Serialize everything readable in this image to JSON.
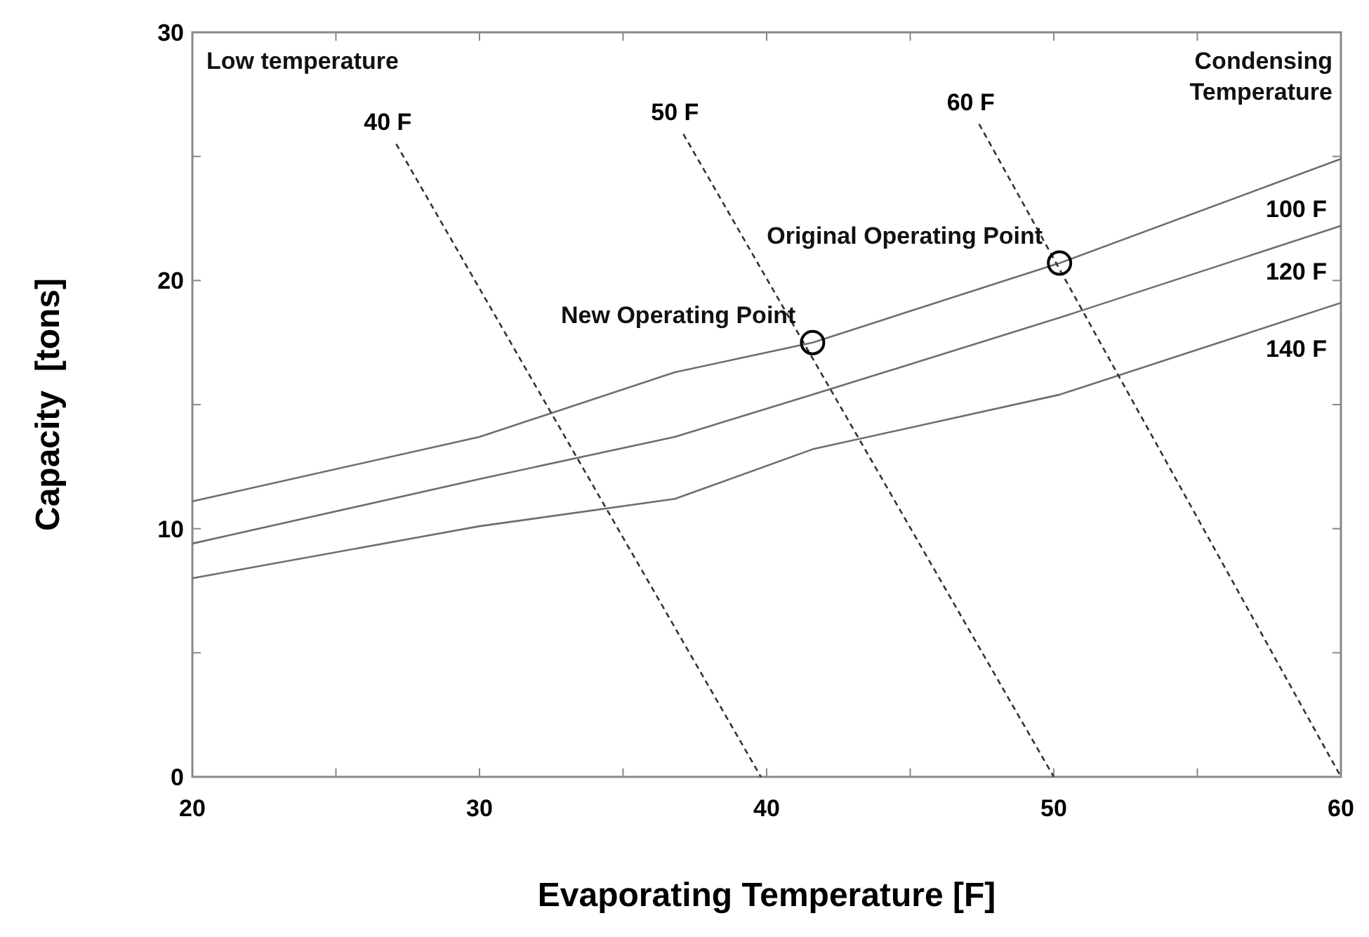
{
  "chart_data": {
    "type": "line",
    "xlabel": "Evaporating Temperature [F]",
    "ylabel": "Capacity  [tons]",
    "xlim": [
      20,
      60
    ],
    "ylim": [
      0,
      30
    ],
    "xticks": [
      20,
      {
        "value": 25,
        "label": null
      },
      30,
      {
        "value": 35,
        "label": null
      },
      40,
      {
        "value": 45,
        "label": null
      },
      50,
      {
        "value": 55,
        "label": null
      },
      60
    ],
    "yticks": [
      0,
      {
        "value": 5,
        "label": null
      },
      10,
      {
        "value": 15,
        "label": null
      },
      20,
      {
        "value": 25,
        "label": null
      },
      30
    ],
    "grid": false,
    "series": [
      {
        "name": "100 F",
        "color": "#6e6e6e",
        "line_style": "solid",
        "x": [
          20,
          30,
          36.8,
          41.6,
          50.2,
          60
        ],
        "values": [
          11.1,
          13.7,
          16.3,
          17.5,
          20.7,
          24.9
        ]
      },
      {
        "name": "120 F",
        "color": "#6e6e6e",
        "line_style": "solid",
        "x": [
          20,
          30,
          36.8,
          41.6,
          50.2,
          60
        ],
        "values": [
          9.4,
          12.0,
          13.7,
          15.4,
          18.5,
          22.2
        ]
      },
      {
        "name": "140 F",
        "color": "#6e6e6e",
        "line_style": "solid",
        "x": [
          20,
          30,
          36.8,
          41.6,
          50.2,
          60
        ],
        "values": [
          8.0,
          10.1,
          11.2,
          13.2,
          15.4,
          19.1
        ]
      },
      {
        "name": "40 F",
        "color": "#333333",
        "line_style": "dashed",
        "x": [
          27.1,
          39.8
        ],
        "values": [
          25.5,
          0
        ]
      },
      {
        "name": "50 F",
        "color": "#333333",
        "line_style": "dashed",
        "x": [
          37.1,
          50
        ],
        "values": [
          25.9,
          0
        ]
      },
      {
        "name": "60 F",
        "color": "#333333",
        "line_style": "dashed",
        "x": [
          47.4,
          60
        ],
        "values": [
          26.3,
          0
        ]
      },
      {
        "type": "scatter",
        "marker": "circle",
        "color": "#000000",
        "x": [
          41.6,
          50.2
        ],
        "values": [
          17.5,
          20.7
        ]
      }
    ],
    "annotations": [
      "Low temperature",
      "Condensing Temperature",
      {
        "text": "Original Operating Point",
        "x": 50.2,
        "y": 20.7
      },
      {
        "text": "New Operating Point",
        "x": 41.6,
        "y": 17.5
      }
    ]
  }
}
